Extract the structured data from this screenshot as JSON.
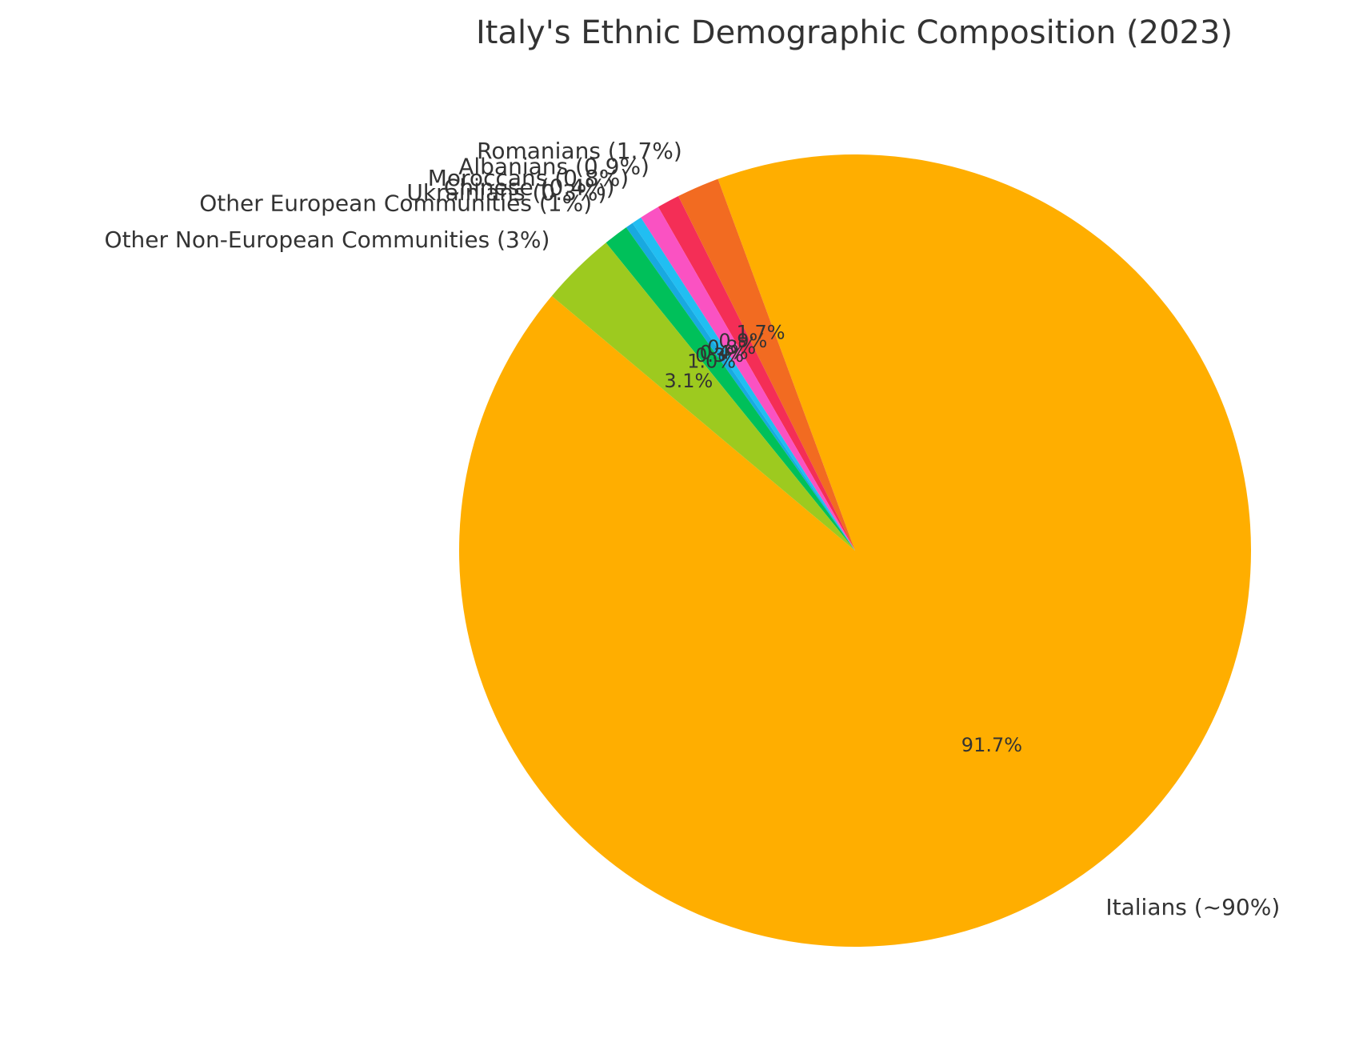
{
  "chart_data": {
    "type": "pie",
    "title": "Italy's Ethnic Demographic Composition (2023)",
    "start_angle_deg": 140,
    "direction": "counterclockwise",
    "slices": [
      {
        "label": "Italians (~90%)",
        "value": 90,
        "pct_label": "91.7%",
        "color": "#FFAE00"
      },
      {
        "label": "Romanians (1.7%)",
        "value": 1.7,
        "pct_label": "1.7%",
        "color": "#F26B21"
      },
      {
        "label": "Albanians (0.9%)",
        "value": 0.9,
        "pct_label": "0.9%",
        "color": "#F42E56"
      },
      {
        "label": "Moroccans (0.8%)",
        "value": 0.8,
        "pct_label": "0.8%",
        "color": "#FA52C2"
      },
      {
        "label": "Chinese (0.4%)",
        "value": 0.4,
        "pct_label": "0.4%",
        "color": "#21BEF2"
      },
      {
        "label": "Ukrainians (0.3%)",
        "value": 0.3,
        "pct_label": "0.3%",
        "color": "#18A9E0"
      },
      {
        "label": "Other European Communities (1%)",
        "value": 1,
        "pct_label": "1.0%",
        "color": "#00C05A"
      },
      {
        "label": "Other Non-European Communities (3%)",
        "value": 3,
        "pct_label": "3.1%",
        "color": "#9DCA1F"
      }
    ]
  }
}
